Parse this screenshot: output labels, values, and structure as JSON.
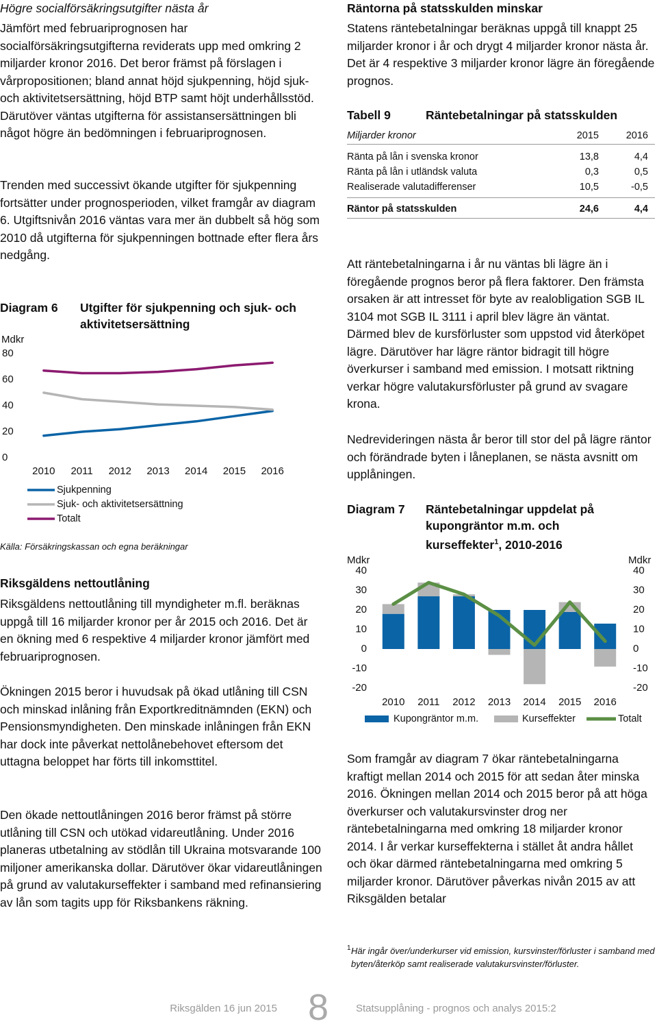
{
  "left_heading": "Högre socialförsäkringsutgifter nästa år",
  "left_paragraphs": [
    "Jämfört med februariprognosen har socialförsäkringsutgifterna reviderats upp med omkring 2 miljarder kronor 2016. Det beror främst på förslagen i vårpropositionen; bland annat höjd sjukpenning, höjd sjuk- och aktivitetsersättning, höjd BTP samt höjt underhållsstöd. Därutöver väntas utgifterna för assistansersättningen bli något högre än bedömningen i februariprognosen.",
    "Trenden med successivt ökande utgifter för sjukpenning fortsätter under prognosperioden, vilket framgår av diagram 6. Utgiftsnivån 2016 väntas vara mer än dubbelt så hög som 2010 då utgifterna för sjukpenningen bottnade efter flera års nedgång."
  ],
  "section2_heading": "Riksgäldens nettoutlåning",
  "section2_paragraphs": [
    "Riksgäldens nettoutlåning till myndigheter m.fl. beräknas uppgå till 16 miljarder kronor per år 2015 och 2016. Det är en ökning med 6 respektive 4 miljarder kronor jämfört med februariprognosen.",
    "Ökningen 2015 beror i huvudsak på ökad utlåning till CSN och minskad inlåning från Exportkredit­nämnden (EKN) och Pensionsmyndigheten. Den minskade inlåningen från EKN har dock inte påverkat nettolånebehovet eftersom det uttagna beloppet har förts till inkomsttitel.",
    "Den ökade nettoutlåningen 2016 beror främst på större utlåning till CSN och utökad vidareutlåning. Under 2016 planeras utbetalning av stödlån till Ukraina motsvarande 100 miljoner amerikanska dollar. Därutöver ökar vidareutlåningen på grund av valutakurseffekter i samband med refinansiering av lån som tagits upp för Riksbankens räkning."
  ],
  "right_heading": "Räntorna på statsskulden minskar",
  "right_paragraphs": [
    "Statens räntebetalningar beräknas uppgå till knappt 25 miljarder kronor i år och drygt 4 miljarder kronor nästa år. Det är 4 respektive 3 miljarder kronor lägre än föregående prognos.",
    "Att räntebetalningarna i år nu väntas bli lägre än i föregående prognos beror på flera faktorer. Den främsta orsaken är att intresset för byte av real­obligation SGB IL 3104 mot SGB IL 3111 i april blev lägre än väntat. Därmed blev de kursförluster som uppstod vid återköpet lägre. Därutöver har lägre räntor bidragit till högre överkurser i samband med emission. I motsatt riktning verkar högre valutakursförluster på grund av svagare krona.",
    "Nedrevideringen nästa år beror till stor del på lägre räntor och förändrade byten i låneplanen, se nästa avsnitt om upplåningen.",
    "Som framgår av diagram 7 ökar räntebetalningarna kraftigt mellan 2014 och 2015 för att sedan åter minska 2016. Ökningen mellan 2014 och 2015 beror på att höga överkurser och valutakursvinster drog ner räntebetalningarna med omkring 18 miljarder kronor 2014. I år verkar kurseffekterna i stället åt andra hållet och ökar därmed räntebetal­ningarna med omkring 5 miljarder kronor. Därutöver påverkas nivån 2015 av att Riksgälden betalar"
  ],
  "table": {
    "label": "Tabell 9",
    "title": "Räntebetalningar på statsskulden",
    "header": [
      "Miljarder kronor",
      "2015",
      "2016"
    ],
    "rows": [
      [
        "Ränta på lån i svenska kronor",
        "13,8",
        "4,4"
      ],
      [
        "Ränta på lån i utländsk valuta",
        "0,3",
        "0,5"
      ],
      [
        "Realiserade valutadifferenser",
        "10,5",
        "-0,5"
      ]
    ],
    "total": [
      "Räntor på statsskulden",
      "24,6",
      "4,4"
    ]
  },
  "footnote": {
    "marker": "1",
    "text": "Här ingår över/underkurser vid emission, kursvinster/förluster i samband med byten/återköp samt realiserade valutakursvinster/förluster."
  },
  "footer": {
    "left": "Riksgälden 16 jun 2015",
    "page": "8",
    "right": "Statsupplåning - prognos och analys 2015:2"
  },
  "chart_data": [
    {
      "type": "line",
      "label": "Diagram 6",
      "title": "Utgifter för sjukpenning och sjuk- och aktivitetsersättning",
      "ylabel": "Mdkr",
      "source": "Källa: Försäkringskassan och egna beräkningar",
      "categories": [
        "2010",
        "2011",
        "2012",
        "2013",
        "2014",
        "2015",
        "2016"
      ],
      "ylim": [
        0,
        80
      ],
      "yticks": [
        0,
        20,
        40,
        60,
        80
      ],
      "series": [
        {
          "name": "Sjukpenning",
          "color": "#0b64a6",
          "values": [
            17,
            20,
            22,
            25,
            28,
            32,
            36
          ]
        },
        {
          "name": "Sjuk- och aktivitetsersättning",
          "color": "#b5b5b5",
          "values": [
            50,
            45,
            43,
            41,
            40,
            39,
            37
          ]
        },
        {
          "name": "Totalt",
          "color": "#8c1a70",
          "values": [
            67,
            65,
            65,
            66,
            68,
            71,
            73
          ]
        }
      ]
    },
    {
      "type": "bar",
      "stacked": true,
      "label": "Diagram 7",
      "title": "Räntebetalningar uppdelat på kupongräntor m.m. och kurseffekter",
      "title_note": "1",
      "title_suffix": ", 2010-2016",
      "ylabel": "Mdkr",
      "categories": [
        "2010",
        "2011",
        "2012",
        "2013",
        "2014",
        "2015",
        "2016"
      ],
      "ylim": [
        -20,
        40
      ],
      "yticks": [
        -20,
        -10,
        0,
        10,
        20,
        30,
        40
      ],
      "series": [
        {
          "name": "Kupongräntor m.m.",
          "color": "#0b64a6",
          "values": [
            18,
            27,
            27,
            20,
            20,
            19,
            13
          ]
        },
        {
          "name": "Kurseffekter",
          "color": "#b5b5b5",
          "values": [
            5,
            7,
            1,
            -3,
            -18,
            5,
            -9
          ]
        },
        {
          "name": "Totalt",
          "color": "#5b8f45",
          "type": "line",
          "values": [
            23,
            34,
            28,
            17,
            2,
            24,
            4
          ]
        }
      ]
    }
  ]
}
